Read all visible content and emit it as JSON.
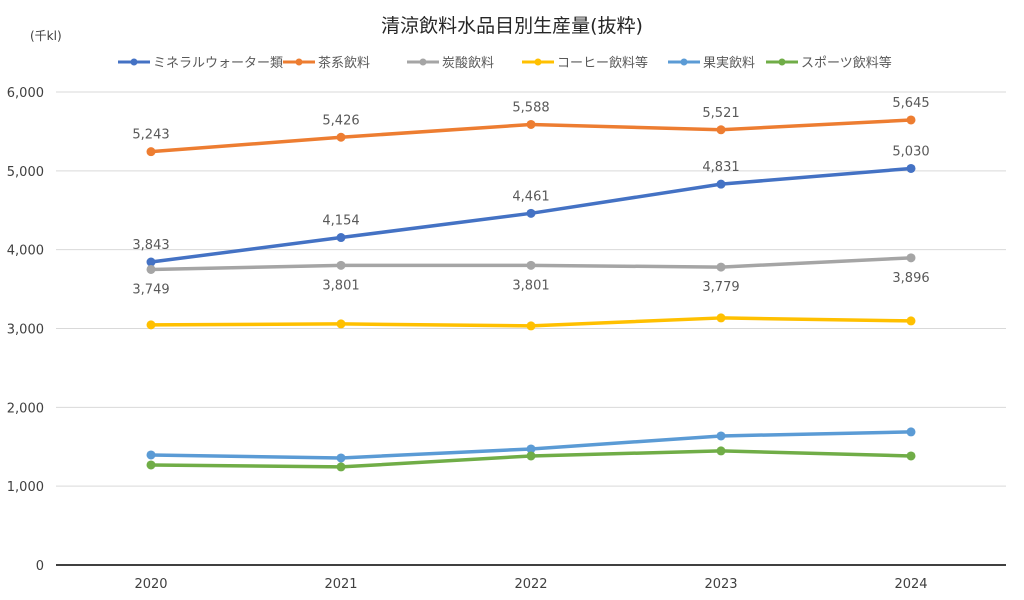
{
  "chart_data": {
    "type": "line",
    "title": "清涼飲料水品目別生産量(抜粋)",
    "unit_label": "(千kl)",
    "xlabel": "",
    "ylabel": "",
    "categories": [
      "2020",
      "2021",
      "2022",
      "2023",
      "2024"
    ],
    "ylim": [
      0,
      6000
    ],
    "yticks": [
      0,
      1000,
      2000,
      3000,
      4000,
      5000,
      6000
    ],
    "ytick_labels": [
      "0",
      "1,000",
      "2,000",
      "3,000",
      "4,000",
      "5,000",
      "6,000"
    ],
    "grid": true,
    "legend_position": "top",
    "series": [
      {
        "name": "ミネラルウォーター類",
        "color": "#4472C4",
        "values": [
          3843,
          4154,
          4461,
          4831,
          5030
        ],
        "labels": [
          "3,843",
          "4,154",
          "4,461",
          "4,831",
          "5,030"
        ],
        "label_position": "above"
      },
      {
        "name": "茶系飲料",
        "color": "#ED7D31",
        "values": [
          5243,
          5426,
          5588,
          5521,
          5645
        ],
        "labels": [
          "5,243",
          "5,426",
          "5,588",
          "5,521",
          "5,645"
        ],
        "label_position": "above"
      },
      {
        "name": "炭酸飲料",
        "color": "#A5A5A5",
        "values": [
          3749,
          3801,
          3801,
          3779,
          3896
        ],
        "labels": [
          "3,749",
          "3,801",
          "3,801",
          "3,779",
          "3,896"
        ],
        "label_position": "below"
      },
      {
        "name": "コーヒー飲料等",
        "color": "#FFC000",
        "values": [
          3046,
          3058,
          3033,
          3134,
          3096
        ],
        "labels": null,
        "label_position": "none"
      },
      {
        "name": "果実飲料",
        "color": "#5B9BD5",
        "values": [
          1396,
          1358,
          1472,
          1637,
          1688
        ],
        "labels": null,
        "label_position": "none"
      },
      {
        "name": "スポーツ飲料等",
        "color": "#70AD47",
        "values": [
          1269,
          1244,
          1383,
          1447,
          1383
        ],
        "labels": null,
        "label_position": "none"
      }
    ]
  }
}
